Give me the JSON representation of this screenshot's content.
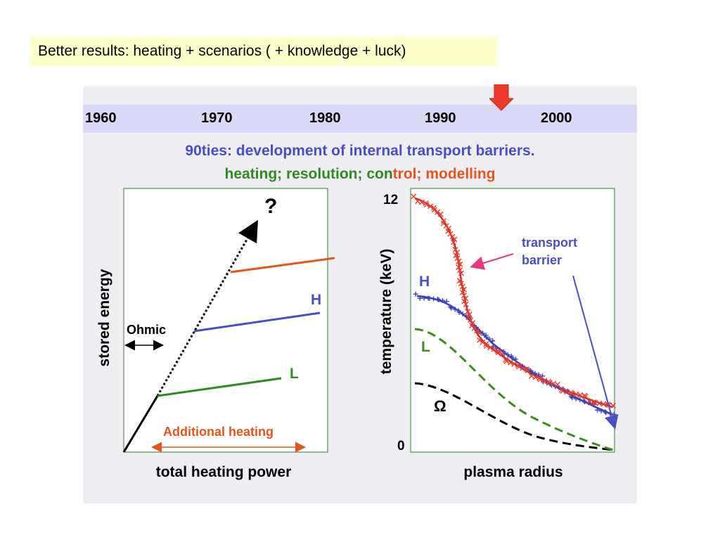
{
  "title": "Better results: heating + scenarios ( + knowledge + luck)",
  "timeline": {
    "years": [
      "1960",
      "1970",
      "1980",
      "1990",
      "2000"
    ]
  },
  "headline": {
    "line1": "90ties: development of internal transport barriers.",
    "line2_parts": [
      "heating; resolution; con",
      "trol; mo",
      "delling"
    ]
  },
  "left_chart": {
    "ylabel": "stored energy",
    "xlabel": "total heating power",
    "question_mark": "?",
    "ohmic_label": "Ohmic",
    "h_label": "H",
    "l_label": "L",
    "additional_heating_label": "Additional heating"
  },
  "right_chart": {
    "ylabel": "temperature (keV)",
    "xlabel": "plasma radius",
    "y_top_tick": "12",
    "y_bottom_tick": "0",
    "transport_barrier_label_1": "transport",
    "transport_barrier_label_2": "barrier",
    "h_label": "H",
    "l_label": "L",
    "omega_label": "Ω"
  },
  "colors": {
    "title_bg": "#ffffcc",
    "panel_bg": "#eeeef2",
    "band_bg": "#d9d9f7",
    "blue": "#4a4ec6",
    "green": "#2e8b1f",
    "red": "#e2561c",
    "dark_red": "#c0283a",
    "pink": "#e83a7a",
    "marker_red": "#ee3a2a"
  }
}
